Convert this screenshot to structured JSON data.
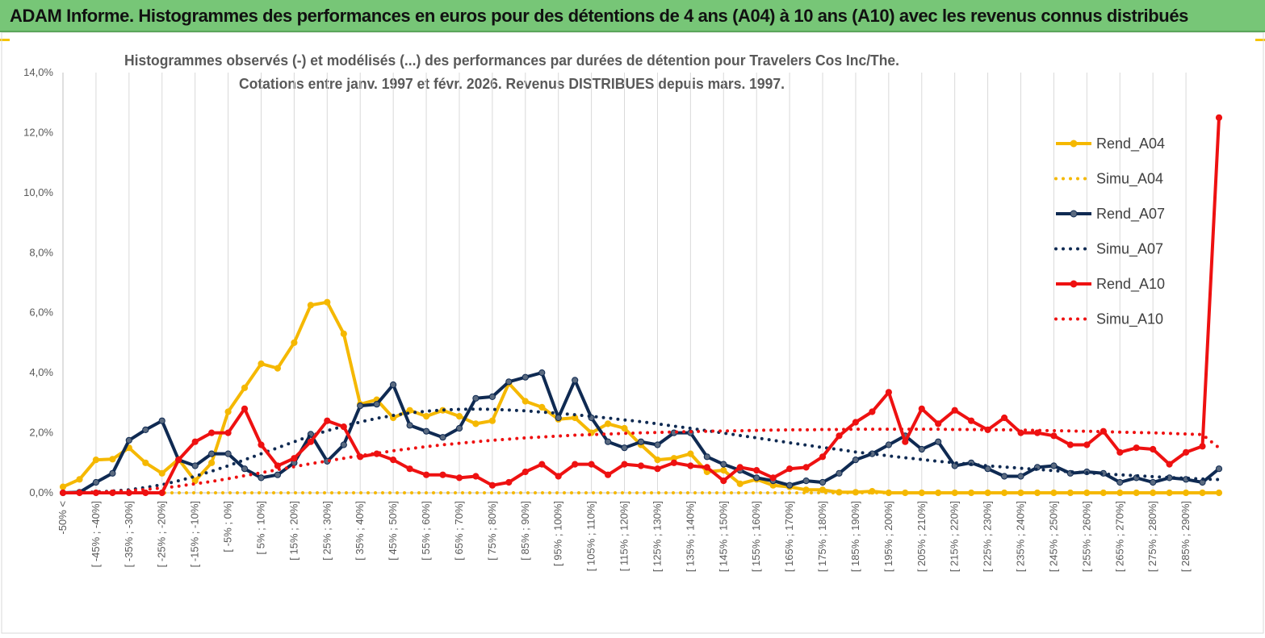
{
  "header": {
    "title": "ADAM Informe. Histogrammes des performances en euros pour des détentions de 4 ans (A04) à 10 ans (A10) avec les revenus connus distribués"
  },
  "colors": {
    "banner": "#77c677",
    "A04": "#f5b800",
    "A07": "#0f2a52",
    "A07_marker": "#5a6a80",
    "A10": "#ee1111",
    "grid": "#d9d9d9"
  },
  "chart_data": {
    "type": "line",
    "title_lines": [
      "Histogrammes observés (-) et modélisés (...) des performances par durées de détention pour Travelers Cos Inc/The.",
      "Cotations entre janv. 1997 et févr. 2026. Revenus DISTRIBUES depuis mars. 1997."
    ],
    "ylim": [
      0,
      14
    ],
    "y_unit": "%",
    "y_ticks": [
      "0,0%",
      "2,0%",
      "4,0%",
      "6,0%",
      "8,0%",
      "10,0%",
      "12,0%",
      "14,0%"
    ],
    "y_tick_values": [
      0,
      2,
      4,
      6,
      8,
      10,
      12,
      14
    ],
    "grid": "vertical",
    "legend_position": "right",
    "category_labels": [
      "-50% <",
      "[ -45% ; -40%]",
      "[ -35% ; -30%]",
      "[ -25% ; -20%]",
      "[ -15% ; -10%]",
      "[ -5% ; 0%]",
      "[ 5% ; 10%]",
      "[ 15% ; 20%]",
      "[ 25% ; 30%]",
      "[ 35% ; 40%]",
      "[ 45% ; 50%]",
      "[ 55% ; 60%]",
      "[ 65% ; 70%]",
      "[ 75% ; 80%]",
      "[ 85% ; 90%]",
      "[ 95% ; 100%]",
      "[ 105% ; 110%]",
      "[ 115% ; 120%]",
      "[ 125% ; 130%]",
      "[ 135% ; 140%]",
      "[ 145% ; 150%]",
      "[ 155% ; 160%]",
      "[ 165% ; 170%]",
      "[ 175% ; 180%]",
      "[ 185% ; 190%]",
      "[ 195% ; 200%]",
      "[ 205% ; 210%]",
      "[ 215% ; 220%]",
      "[ 225% ; 230%]",
      "[ 235% ; 240%]",
      "[ 245% ; 250%]",
      "[ 255% ; 260%]",
      "[ 265% ; 270%]",
      "[ 275% ; 280%]",
      "[ 285% ; 290%]"
    ],
    "series": [
      {
        "name": "Rend_A04",
        "style": "solid",
        "color": "#f5b800",
        "values": [
          0.2,
          0.45,
          1.1,
          1.12,
          1.5,
          1.0,
          0.65,
          1.12,
          0.4,
          1.0,
          2.7,
          3.5,
          4.3,
          4.15,
          5.0,
          6.25,
          6.35,
          5.3,
          2.95,
          3.1,
          2.5,
          2.75,
          2.55,
          2.75,
          2.55,
          2.3,
          2.4,
          3.65,
          3.05,
          2.85,
          2.45,
          2.5,
          2.0,
          2.3,
          2.15,
          1.6,
          1.1,
          1.15,
          1.3,
          0.7,
          0.75,
          0.3,
          0.45,
          0.25,
          0.2,
          0.1,
          0.1,
          0.02,
          0.02,
          0.05,
          0.0,
          0.0,
          0.0,
          0.0,
          0.0,
          0.0,
          0.0,
          0.0,
          0.0,
          0.0,
          0.0,
          0.0,
          0.0,
          0.0,
          0.0,
          0.0,
          0.0,
          0.0,
          0.0,
          0.0,
          0.0
        ]
      },
      {
        "name": "Simu_A04",
        "style": "dotted",
        "color": "#f5b800",
        "values": [
          0.0,
          0.0,
          0.0,
          0.0,
          0.0,
          0.0,
          0.0,
          0.0,
          0.0,
          0.0,
          0.0,
          0.0,
          0.0,
          0.0,
          0.0,
          0.0,
          0.0,
          0.0,
          0.0,
          0.0,
          0.0,
          0.0,
          0.0,
          0.0,
          0.0,
          0.0,
          0.0,
          0.0,
          0.0,
          0.0,
          0.0,
          0.0,
          0.0,
          0.0,
          0.0,
          0.0,
          0.0,
          0.0,
          0.0,
          0.0,
          0.0,
          0.0,
          0.0,
          0.0,
          0.0,
          0.0,
          0.0,
          0.0,
          0.0,
          0.0,
          0.0,
          0.0,
          0.0,
          0.0,
          0.0,
          0.0,
          0.0,
          0.0,
          0.0,
          0.0,
          0.0,
          0.0,
          0.0,
          0.0,
          0.0,
          0.0,
          0.0,
          0.0,
          0.0,
          0.0,
          0.0
        ]
      },
      {
        "name": "Rend_A07",
        "style": "solid",
        "color": "#0f2a52",
        "values": [
          0.0,
          0.02,
          0.35,
          0.65,
          1.75,
          2.1,
          2.4,
          1.1,
          0.9,
          1.3,
          1.3,
          0.8,
          0.5,
          0.6,
          1.0,
          1.95,
          1.05,
          1.6,
          2.9,
          2.95,
          3.6,
          2.25,
          2.05,
          1.85,
          2.15,
          3.15,
          3.2,
          3.7,
          3.85,
          4.0,
          2.5,
          3.75,
          2.5,
          1.7,
          1.5,
          1.7,
          1.6,
          2.0,
          2.0,
          1.2,
          0.95,
          0.75,
          0.5,
          0.4,
          0.25,
          0.4,
          0.35,
          0.65,
          1.1,
          1.3,
          1.6,
          1.9,
          1.45,
          1.7,
          0.9,
          1.0,
          0.8,
          0.55,
          0.55,
          0.85,
          0.9,
          0.65,
          0.7,
          0.65,
          0.35,
          0.5,
          0.35,
          0.5,
          0.45,
          0.35,
          0.8
        ]
      },
      {
        "name": "Simu_A07",
        "style": "dotted",
        "color": "#0f2a52",
        "values": [
          0.0,
          0.01,
          0.03,
          0.06,
          0.1,
          0.18,
          0.27,
          0.4,
          0.55,
          0.72,
          0.9,
          1.1,
          1.3,
          1.5,
          1.7,
          1.9,
          2.07,
          2.22,
          2.36,
          2.48,
          2.58,
          2.66,
          2.72,
          2.76,
          2.78,
          2.79,
          2.78,
          2.76,
          2.73,
          2.69,
          2.65,
          2.6,
          2.55,
          2.49,
          2.43,
          2.37,
          2.3,
          2.22,
          2.15,
          2.07,
          1.99,
          1.91,
          1.83,
          1.75,
          1.67,
          1.59,
          1.51,
          1.44,
          1.36,
          1.3,
          1.23,
          1.17,
          1.11,
          1.05,
          1.0,
          0.95,
          0.9,
          0.86,
          0.82,
          0.78,
          0.74,
          0.7,
          0.67,
          0.63,
          0.6,
          0.57,
          0.54,
          0.51,
          0.49,
          0.46,
          0.44
        ]
      },
      {
        "name": "Rend_A10",
        "style": "solid",
        "color": "#ee1111",
        "values": [
          0.0,
          0.0,
          0.0,
          0.0,
          0.0,
          0.0,
          0.0,
          1.1,
          1.7,
          2.0,
          2.0,
          2.8,
          1.6,
          0.9,
          1.15,
          1.7,
          2.4,
          2.2,
          1.2,
          1.3,
          1.1,
          0.8,
          0.6,
          0.6,
          0.5,
          0.55,
          0.25,
          0.35,
          0.7,
          0.95,
          0.55,
          0.95,
          0.95,
          0.6,
          0.95,
          0.9,
          0.8,
          1.0,
          0.9,
          0.85,
          0.4,
          0.85,
          0.75,
          0.5,
          0.8,
          0.85,
          1.2,
          1.9,
          2.35,
          2.7,
          3.35,
          1.7,
          2.8,
          2.3,
          2.75,
          2.4,
          2.1,
          2.5,
          2.0,
          2.0,
          1.9,
          1.6,
          1.6,
          2.05,
          1.35,
          1.5,
          1.45,
          0.95,
          1.35,
          1.55,
          12.5
        ]
      },
      {
        "name": "Simu_A10",
        "style": "dotted",
        "color": "#ee1111",
        "values": [
          0.0,
          0.01,
          0.02,
          0.04,
          0.07,
          0.11,
          0.16,
          0.22,
          0.3,
          0.38,
          0.47,
          0.57,
          0.67,
          0.77,
          0.87,
          0.97,
          1.06,
          1.15,
          1.24,
          1.32,
          1.4,
          1.47,
          1.54,
          1.6,
          1.65,
          1.7,
          1.75,
          1.79,
          1.83,
          1.86,
          1.89,
          1.92,
          1.94,
          1.96,
          1.98,
          2.0,
          2.01,
          2.03,
          2.04,
          2.05,
          2.06,
          2.07,
          2.08,
          2.09,
          2.1,
          2.1,
          2.11,
          2.11,
          2.12,
          2.12,
          2.12,
          2.12,
          2.12,
          2.12,
          2.11,
          2.11,
          2.1,
          2.1,
          2.09,
          2.08,
          2.07,
          2.06,
          2.05,
          2.04,
          2.02,
          2.01,
          2.0,
          1.98,
          1.96,
          1.94,
          1.5
        ]
      }
    ]
  }
}
